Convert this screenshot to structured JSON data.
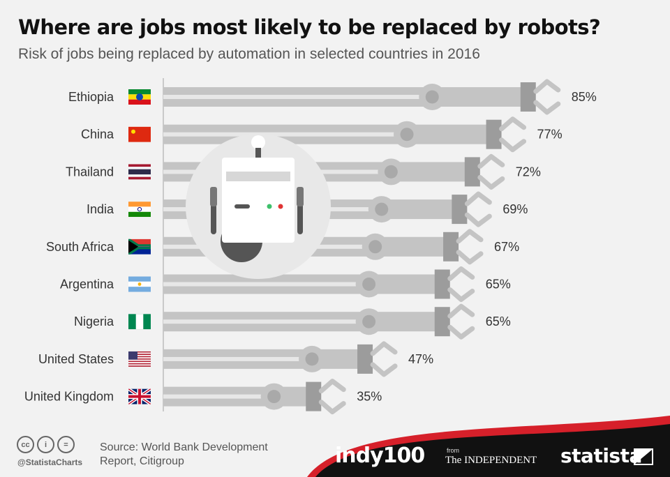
{
  "header": {
    "title": "Where are jobs most likely to be replaced by robots?",
    "subtitle": "Risk of jobs being replaced by automation in selected countries in 2016"
  },
  "chart_data": {
    "type": "bar",
    "title": "Where are jobs most likely to be replaced by robots?",
    "subtitle": "Risk of jobs being replaced by automation in selected countries in 2016",
    "categories": [
      "Ethiopia",
      "China",
      "Thailand",
      "India",
      "South Africa",
      "Argentina",
      "Nigeria",
      "United States",
      "United Kingdom"
    ],
    "values": [
      85,
      77,
      72,
      69,
      67,
      65,
      65,
      47,
      35
    ],
    "value_labels": [
      "85%",
      "77%",
      "72%",
      "69%",
      "67%",
      "65%",
      "65%",
      "47%",
      "35%"
    ],
    "unit": "%",
    "ylim": [
      0,
      100
    ]
  },
  "footer": {
    "source": "Source: World Bank Development Report, Citigroup",
    "handle": "@StatistaCharts",
    "license_icons": [
      "cc-icon",
      "attribution-icon",
      "no-derivatives-icon"
    ],
    "brands": {
      "indy_part1": "indy",
      "indy_part2": "100",
      "from": "from",
      "independent": "The INDEPENDENT",
      "statista": "statista"
    }
  },
  "colors": {
    "arm": "#c4c4c4",
    "arm_inner": "#e7e7e7",
    "joint": "#a9a9a9",
    "clamp": "#9c9c9c",
    "footer": "#111111",
    "accent": "#d6202a"
  }
}
